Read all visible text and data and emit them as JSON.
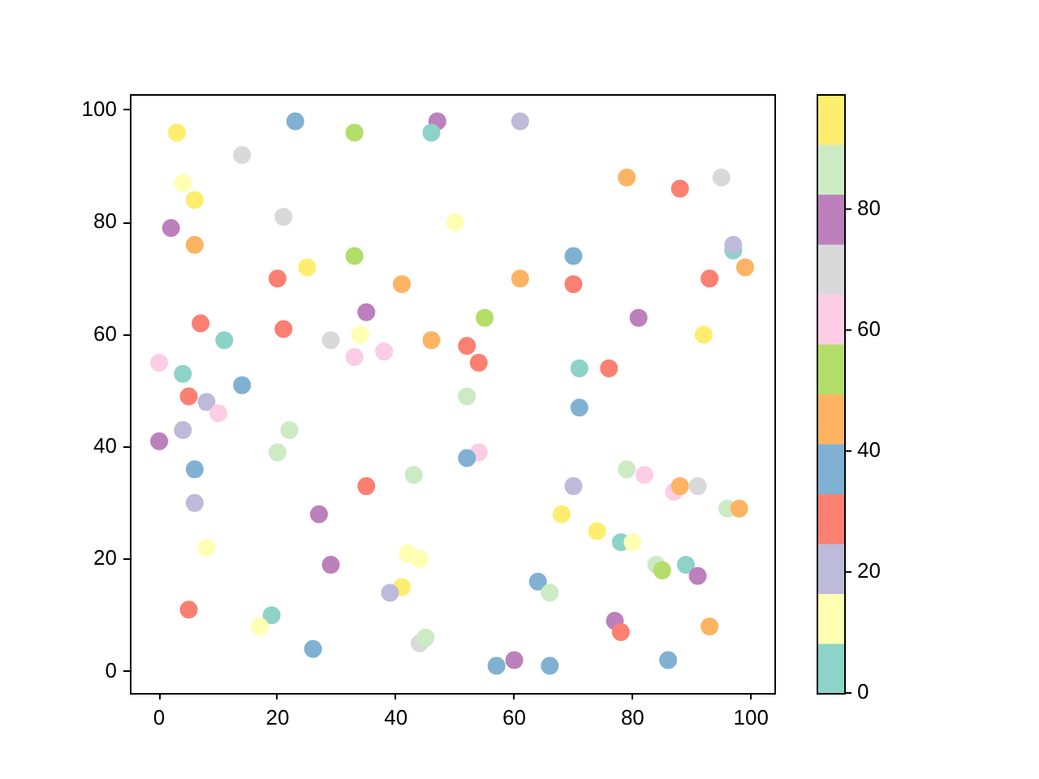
{
  "chart_data": {
    "type": "scatter",
    "marker": "circle",
    "x": [
      3,
      23,
      33,
      47,
      46,
      14,
      4,
      6,
      21,
      2,
      6,
      50,
      33,
      25,
      20,
      41,
      35,
      7,
      21,
      11,
      29,
      34,
      46,
      0,
      4,
      33,
      38,
      14,
      61,
      79,
      88,
      95,
      70,
      97,
      97,
      99,
      61,
      70,
      93,
      55,
      81,
      92,
      52,
      54,
      71,
      76,
      5,
      8,
      10,
      4,
      22,
      0,
      20,
      6,
      43,
      35,
      6,
      27,
      8,
      42,
      44,
      29,
      41,
      39,
      5,
      19,
      17,
      26,
      44,
      45,
      52,
      71,
      54,
      52,
      79,
      82,
      70,
      87,
      88,
      91,
      96,
      98,
      68,
      74,
      78,
      80,
      84,
      85,
      89,
      91,
      64,
      66,
      77,
      78,
      93,
      57,
      60,
      66,
      86
    ],
    "values": [
      96,
      98,
      96,
      98,
      96,
      92,
      87,
      84,
      81,
      79,
      76,
      80,
      74,
      72,
      70,
      69,
      64,
      62,
      61,
      59,
      59,
      60,
      59,
      55,
      53,
      56,
      57,
      51,
      98,
      88,
      86,
      88,
      74,
      75,
      76,
      72,
      70,
      69,
      70,
      63,
      63,
      60,
      58,
      55,
      54,
      54,
      49,
      48,
      46,
      43,
      43,
      41,
      39,
      36,
      35,
      33,
      30,
      28,
      22,
      21,
      20,
      19,
      15,
      14,
      11,
      10,
      8,
      4,
      5,
      6,
      49,
      47,
      39,
      38,
      36,
      35,
      33,
      32,
      33,
      33,
      29,
      29,
      28,
      25,
      23,
      23,
      19,
      18,
      19,
      17,
      16,
      14,
      9,
      7,
      8,
      1,
      2,
      1,
      2
    ],
    "cvalues": [
      95,
      37,
      54,
      78,
      4,
      70,
      12,
      95,
      70,
      78,
      45,
      12,
      54,
      95,
      29,
      45,
      78,
      29,
      29,
      4,
      70,
      12,
      45,
      62,
      4,
      62,
      62,
      37,
      21,
      45,
      29,
      70,
      37,
      4,
      21,
      45,
      45,
      29,
      29,
      54,
      78,
      95,
      29,
      29,
      4,
      29,
      29,
      21,
      62,
      21,
      87,
      78,
      87,
      37,
      87,
      29,
      21,
      78,
      12,
      12,
      12,
      78,
      95,
      21,
      29,
      4,
      12,
      37,
      70,
      87,
      87,
      37,
      62,
      37,
      87,
      62,
      21,
      62,
      45,
      70,
      87,
      45,
      95,
      95,
      4,
      12,
      87,
      54,
      4,
      78,
      37,
      87,
      78,
      29,
      45,
      37,
      78,
      37,
      37
    ],
    "colors": [
      "#ffed6f",
      "#80b1d3",
      "#b3de69",
      "#bc80bd",
      "#8dd3c7",
      "#d9d9d9",
      "#ffffb3",
      "#ffed6f",
      "#d9d9d9",
      "#bc80bd",
      "#fdb462",
      "#ffffb3",
      "#b3de69",
      "#ffed6f",
      "#fb8072",
      "#fdb462",
      "#bc80bd",
      "#fb8072",
      "#fb8072",
      "#8dd3c7",
      "#d9d9d9",
      "#ffffb3",
      "#fdb462",
      "#fccde5",
      "#8dd3c7",
      "#fccde5",
      "#fccde5",
      "#80b1d3",
      "#bebada",
      "#fdb462",
      "#fb8072",
      "#d9d9d9",
      "#80b1d3",
      "#8dd3c7",
      "#bebada",
      "#fdb462",
      "#fdb462",
      "#fb8072",
      "#fb8072",
      "#b3de69",
      "#bc80bd",
      "#ffed6f",
      "#fb8072",
      "#fb8072",
      "#8dd3c7",
      "#fb8072",
      "#fb8072",
      "#bebada",
      "#fccde5",
      "#bebada",
      "#ccebc5",
      "#bc80bd",
      "#ccebc5",
      "#80b1d3",
      "#ccebc5",
      "#fb8072",
      "#bebada",
      "#bc80bd",
      "#ffffb3",
      "#ffffb3",
      "#ffffb3",
      "#bc80bd",
      "#ffed6f",
      "#bebada",
      "#fb8072",
      "#8dd3c7",
      "#ffffb3",
      "#80b1d3",
      "#d9d9d9",
      "#ccebc5",
      "#ccebc5",
      "#80b1d3",
      "#fccde5",
      "#80b1d3",
      "#ccebc5",
      "#fccde5",
      "#bebada",
      "#fccde5",
      "#fdb462",
      "#d9d9d9",
      "#ccebc5",
      "#fdb462",
      "#ffed6f",
      "#ffed6f",
      "#8dd3c7",
      "#ffffb3",
      "#ccebc5",
      "#b3de69",
      "#8dd3c7",
      "#bc80bd",
      "#80b1d3",
      "#ccebc5",
      "#bc80bd",
      "#fb8072",
      "#fdb462",
      "#80b1d3",
      "#bc80bd",
      "#80b1d3",
      "#80b1d3"
    ],
    "xlim": [
      -4.95,
      103.95
    ],
    "ylim": [
      -3.85,
      102.85
    ],
    "xticks": [
      0,
      20,
      40,
      60,
      80,
      100
    ],
    "yticks": [
      0,
      20,
      40,
      60,
      80,
      100
    ],
    "clim": [
      0,
      99
    ],
    "cticks": [
      0,
      20,
      40,
      60,
      80
    ]
  }
}
